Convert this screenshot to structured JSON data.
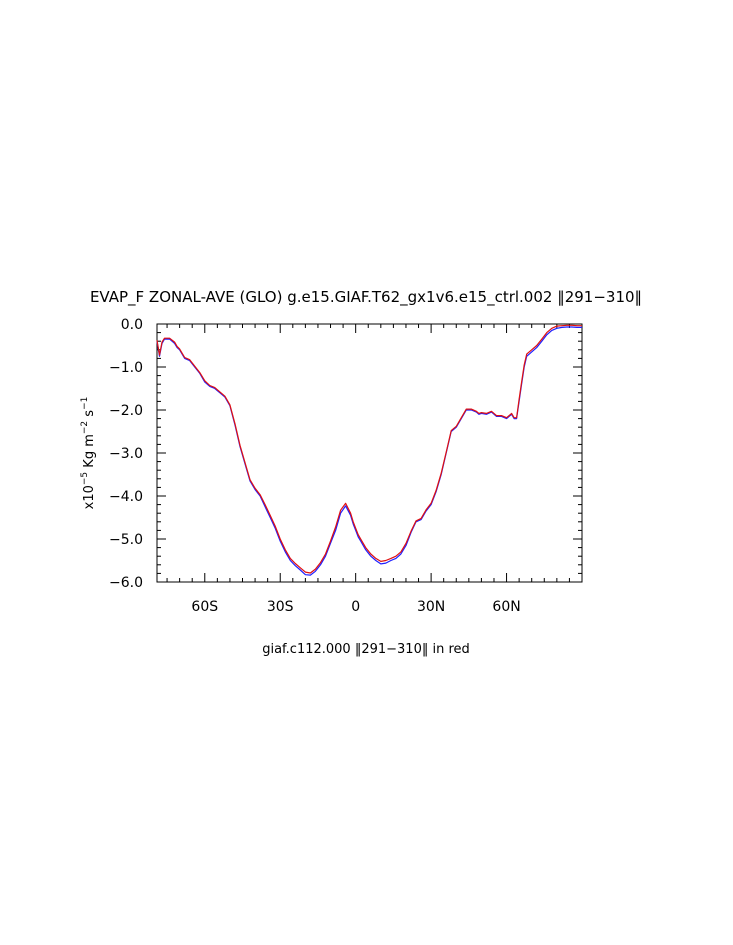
{
  "chart_data": {
    "type": "line",
    "title": "EVAP_F ZONAL-AVE (GLO) g.e15.GIAF.T62_gx1v6.e15_ctrl.002 ‖291−310‖",
    "ylabel": {
      "prefix": "x10",
      "exp": "−5",
      "text": " Kg m",
      "exp2": "−2",
      "text2": " s",
      "exp3": "−1"
    },
    "caption": "giaf.c112.000 ‖291−310‖ in red",
    "xlim": [
      -79,
      90
    ],
    "ylim": [
      -6.0,
      0.0
    ],
    "x_ticks": [
      {
        "value": -60,
        "label": "60S"
      },
      {
        "value": -30,
        "label": "30S"
      },
      {
        "value": 0,
        "label": "0"
      },
      {
        "value": 30,
        "label": "30N"
      },
      {
        "value": 60,
        "label": "60N"
      }
    ],
    "y_ticks": [
      {
        "value": 0,
        "label": "0.0"
      },
      {
        "value": -1,
        "label": "−1.0"
      },
      {
        "value": -2,
        "label": "−2.0"
      },
      {
        "value": -3,
        "label": "−3.0"
      },
      {
        "value": -4,
        "label": "−4.0"
      },
      {
        "value": -5,
        "label": "−5.0"
      },
      {
        "value": -6,
        "label": "−6.0"
      }
    ],
    "series": [
      {
        "color": "#1f1fff",
        "x": [
          -79,
          -78,
          -77,
          -76,
          -74,
          -72,
          -71,
          -70,
          -69,
          -68,
          -66,
          -64,
          -62,
          -60,
          -58,
          -56,
          -54,
          -52,
          -50,
          -48,
          -46,
          -44,
          -42,
          -40,
          -38,
          -36,
          -34,
          -32,
          -30,
          -28,
          -26,
          -24,
          -22,
          -20,
          -18,
          -16,
          -14,
          -12,
          -10,
          -8,
          -6,
          -4,
          -2,
          -1,
          0,
          1,
          2,
          3,
          4,
          6,
          8,
          10,
          12,
          14,
          16,
          18,
          20,
          22,
          24,
          26,
          28,
          30,
          32,
          34,
          36,
          38,
          40,
          42,
          44,
          46,
          48,
          49,
          50,
          52,
          54,
          56,
          58,
          60,
          62,
          63,
          64,
          65,
          66,
          67,
          68,
          70,
          72,
          74,
          76,
          78,
          80,
          82,
          84,
          86,
          88,
          90
        ],
        "y": [
          -0.4,
          -0.75,
          -0.45,
          -0.35,
          -0.35,
          -0.45,
          -0.55,
          -0.6,
          -0.7,
          -0.8,
          -0.85,
          -1.0,
          -1.15,
          -1.35,
          -1.45,
          -1.5,
          -1.6,
          -1.7,
          -1.9,
          -2.35,
          -2.85,
          -3.25,
          -3.65,
          -3.85,
          -4.0,
          -4.25,
          -4.5,
          -4.75,
          -5.05,
          -5.3,
          -5.5,
          -5.62,
          -5.72,
          -5.83,
          -5.84,
          -5.75,
          -5.6,
          -5.4,
          -5.1,
          -4.8,
          -4.4,
          -4.23,
          -4.45,
          -4.65,
          -4.8,
          -4.95,
          -5.05,
          -5.15,
          -5.25,
          -5.4,
          -5.5,
          -5.58,
          -5.56,
          -5.5,
          -5.45,
          -5.35,
          -5.15,
          -4.85,
          -4.6,
          -4.55,
          -4.35,
          -4.2,
          -3.9,
          -3.5,
          -3.0,
          -2.5,
          -2.4,
          -2.2,
          -2.0,
          -2.0,
          -2.05,
          -2.1,
          -2.08,
          -2.1,
          -2.05,
          -2.15,
          -2.15,
          -2.2,
          -2.1,
          -2.2,
          -2.2,
          -1.8,
          -1.4,
          -1.0,
          -0.75,
          -0.65,
          -0.55,
          -0.4,
          -0.25,
          -0.15,
          -0.1,
          -0.08,
          -0.07,
          -0.07,
          -0.08,
          -0.08
        ]
      },
      {
        "color": "#e01010",
        "x": [
          -79,
          -78,
          -77,
          -76,
          -74,
          -72,
          -71,
          -70,
          -69,
          -68,
          -66,
          -64,
          -62,
          -60,
          -58,
          -56,
          -54,
          -52,
          -50,
          -48,
          -46,
          -44,
          -42,
          -40,
          -38,
          -36,
          -34,
          -32,
          -30,
          -28,
          -26,
          -24,
          -22,
          -20,
          -18,
          -16,
          -14,
          -12,
          -10,
          -8,
          -6,
          -4,
          -2,
          -1,
          0,
          1,
          2,
          3,
          4,
          6,
          8,
          10,
          12,
          14,
          16,
          18,
          20,
          22,
          24,
          26,
          28,
          30,
          32,
          34,
          36,
          38,
          40,
          42,
          44,
          46,
          48,
          49,
          50,
          52,
          54,
          56,
          58,
          60,
          62,
          63,
          64,
          65,
          66,
          67,
          68,
          70,
          72,
          74,
          76,
          78,
          80,
          82,
          84,
          86,
          88,
          90
        ],
        "y": [
          -0.38,
          -0.72,
          -0.42,
          -0.33,
          -0.33,
          -0.42,
          -0.52,
          -0.58,
          -0.68,
          -0.78,
          -0.83,
          -0.98,
          -1.13,
          -1.32,
          -1.43,
          -1.48,
          -1.58,
          -1.68,
          -1.88,
          -2.32,
          -2.82,
          -3.22,
          -3.62,
          -3.82,
          -3.97,
          -4.2,
          -4.45,
          -4.7,
          -5.0,
          -5.25,
          -5.45,
          -5.57,
          -5.67,
          -5.77,
          -5.79,
          -5.7,
          -5.55,
          -5.35,
          -5.05,
          -4.72,
          -4.33,
          -4.17,
          -4.4,
          -4.6,
          -4.75,
          -4.9,
          -5.0,
          -5.1,
          -5.2,
          -5.35,
          -5.45,
          -5.52,
          -5.5,
          -5.45,
          -5.4,
          -5.3,
          -5.1,
          -4.82,
          -4.58,
          -4.52,
          -4.32,
          -4.17,
          -3.87,
          -3.47,
          -2.98,
          -2.48,
          -2.38,
          -2.18,
          -1.98,
          -1.98,
          -2.03,
          -2.08,
          -2.06,
          -2.08,
          -2.03,
          -2.13,
          -2.13,
          -2.18,
          -2.08,
          -2.18,
          -2.18,
          -1.75,
          -1.35,
          -0.95,
          -0.7,
          -0.6,
          -0.5,
          -0.35,
          -0.2,
          -0.1,
          -0.05,
          -0.04,
          -0.03,
          -0.03,
          -0.04,
          -0.04
        ]
      }
    ]
  }
}
